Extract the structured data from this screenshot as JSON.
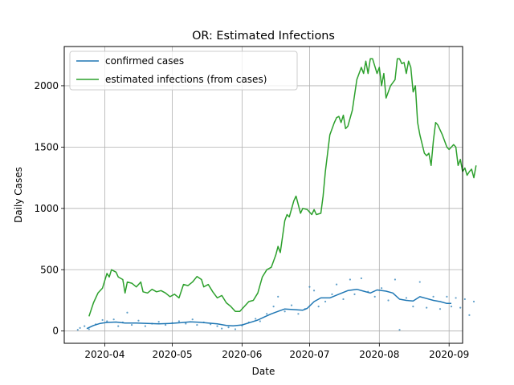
{
  "chart_data": {
    "type": "line",
    "title": "OR: Estimated Infections",
    "xlabel": "Date",
    "ylabel": "Daily Cases",
    "xlim": [
      "2020-03-14",
      "2020-09-07"
    ],
    "ylim": [
      -100,
      2320
    ],
    "x_ticks": [
      "2020-04",
      "2020-05",
      "2020-06",
      "2020-07",
      "2020-08",
      "2020-09"
    ],
    "y_ticks": [
      0,
      500,
      1000,
      1500,
      2000
    ],
    "grid": true,
    "legend": "upper-left",
    "series": [
      {
        "name": "confirmed cases",
        "color": "#1f77b4",
        "points": [
          [
            "2020-03-24",
            20
          ],
          [
            "2020-03-27",
            45
          ],
          [
            "2020-03-30",
            62
          ],
          [
            "2020-04-02",
            70
          ],
          [
            "2020-04-06",
            73
          ],
          [
            "2020-04-10",
            65
          ],
          [
            "2020-04-15",
            65
          ],
          [
            "2020-04-20",
            62
          ],
          [
            "2020-04-25",
            58
          ],
          [
            "2020-04-30",
            62
          ],
          [
            "2020-05-05",
            68
          ],
          [
            "2020-05-09",
            75
          ],
          [
            "2020-05-13",
            72
          ],
          [
            "2020-05-17",
            65
          ],
          [
            "2020-05-21",
            58
          ],
          [
            "2020-05-25",
            45
          ],
          [
            "2020-05-28",
            42
          ],
          [
            "2020-06-01",
            50
          ],
          [
            "2020-06-05",
            72
          ],
          [
            "2020-06-08",
            90
          ],
          [
            "2020-06-11",
            115
          ],
          [
            "2020-06-14",
            140
          ],
          [
            "2020-06-17",
            160
          ],
          [
            "2020-06-20",
            180
          ],
          [
            "2020-06-24",
            175
          ],
          [
            "2020-06-28",
            170
          ],
          [
            "2020-06-30",
            185
          ],
          [
            "2020-07-03",
            240
          ],
          [
            "2020-07-06",
            270
          ],
          [
            "2020-07-10",
            270
          ],
          [
            "2020-07-14",
            300
          ],
          [
            "2020-07-18",
            330
          ],
          [
            "2020-07-22",
            340
          ],
          [
            "2020-07-25",
            325
          ],
          [
            "2020-07-28",
            310
          ],
          [
            "2020-07-31",
            335
          ],
          [
            "2020-08-04",
            325
          ],
          [
            "2020-08-07",
            310
          ],
          [
            "2020-08-10",
            260
          ],
          [
            "2020-08-13",
            250
          ],
          [
            "2020-08-16",
            245
          ],
          [
            "2020-08-19",
            280
          ],
          [
            "2020-08-22",
            265
          ],
          [
            "2020-08-25",
            250
          ],
          [
            "2020-08-28",
            240
          ],
          [
            "2020-08-31",
            225
          ],
          [
            "2020-09-02",
            225
          ]
        ]
      },
      {
        "name": "estimated infections (from cases)",
        "color": "#2ca02c",
        "points": [
          [
            "2020-03-25",
            120
          ],
          [
            "2020-03-27",
            230
          ],
          [
            "2020-03-29",
            310
          ],
          [
            "2020-03-31",
            350
          ],
          [
            "2020-04-02",
            470
          ],
          [
            "2020-04-03",
            440
          ],
          [
            "2020-04-04",
            500
          ],
          [
            "2020-04-06",
            480
          ],
          [
            "2020-04-07",
            440
          ],
          [
            "2020-04-09",
            420
          ],
          [
            "2020-04-10",
            310
          ],
          [
            "2020-04-11",
            400
          ],
          [
            "2020-04-13",
            390
          ],
          [
            "2020-04-15",
            360
          ],
          [
            "2020-04-17",
            400
          ],
          [
            "2020-04-18",
            320
          ],
          [
            "2020-04-20",
            310
          ],
          [
            "2020-04-22",
            340
          ],
          [
            "2020-04-24",
            320
          ],
          [
            "2020-04-26",
            330
          ],
          [
            "2020-04-28",
            310
          ],
          [
            "2020-04-30",
            280
          ],
          [
            "2020-05-02",
            300
          ],
          [
            "2020-05-04",
            270
          ],
          [
            "2020-05-06",
            380
          ],
          [
            "2020-05-08",
            370
          ],
          [
            "2020-05-10",
            400
          ],
          [
            "2020-05-12",
            445
          ],
          [
            "2020-05-14",
            420
          ],
          [
            "2020-05-15",
            360
          ],
          [
            "2020-05-17",
            380
          ],
          [
            "2020-05-19",
            320
          ],
          [
            "2020-05-21",
            270
          ],
          [
            "2020-05-23",
            290
          ],
          [
            "2020-05-25",
            230
          ],
          [
            "2020-05-27",
            200
          ],
          [
            "2020-05-29",
            160
          ],
          [
            "2020-05-31",
            160
          ],
          [
            "2020-06-02",
            200
          ],
          [
            "2020-06-04",
            240
          ],
          [
            "2020-06-06",
            250
          ],
          [
            "2020-06-08",
            310
          ],
          [
            "2020-06-10",
            440
          ],
          [
            "2020-06-12",
            500
          ],
          [
            "2020-06-14",
            520
          ],
          [
            "2020-06-16",
            620
          ],
          [
            "2020-06-17",
            690
          ],
          [
            "2020-06-18",
            640
          ],
          [
            "2020-06-20",
            900
          ],
          [
            "2020-06-21",
            950
          ],
          [
            "2020-06-22",
            930
          ],
          [
            "2020-06-24",
            1060
          ],
          [
            "2020-06-25",
            1100
          ],
          [
            "2020-06-27",
            960
          ],
          [
            "2020-06-28",
            1000
          ],
          [
            "2020-06-30",
            990
          ],
          [
            "2020-07-02",
            950
          ],
          [
            "2020-07-03",
            990
          ],
          [
            "2020-07-04",
            950
          ],
          [
            "2020-07-06",
            960
          ],
          [
            "2020-07-07",
            1100
          ],
          [
            "2020-07-08",
            1300
          ],
          [
            "2020-07-09",
            1450
          ],
          [
            "2020-07-10",
            1600
          ],
          [
            "2020-07-12",
            1700
          ],
          [
            "2020-07-13",
            1740
          ],
          [
            "2020-07-14",
            1750
          ],
          [
            "2020-07-15",
            1700
          ],
          [
            "2020-07-16",
            1760
          ],
          [
            "2020-07-17",
            1650
          ],
          [
            "2020-07-18",
            1670
          ],
          [
            "2020-07-20",
            1800
          ],
          [
            "2020-07-22",
            2050
          ],
          [
            "2020-07-24",
            2150
          ],
          [
            "2020-07-25",
            2100
          ],
          [
            "2020-07-26",
            2200
          ],
          [
            "2020-07-27",
            2100
          ],
          [
            "2020-07-28",
            2220
          ],
          [
            "2020-07-29",
            2220
          ],
          [
            "2020-07-31",
            2100
          ],
          [
            "2020-08-01",
            2150
          ],
          [
            "2020-08-02",
            2000
          ],
          [
            "2020-08-03",
            2100
          ],
          [
            "2020-08-04",
            1900
          ],
          [
            "2020-08-06",
            2000
          ],
          [
            "2020-08-08",
            2050
          ],
          [
            "2020-08-09",
            2220
          ],
          [
            "2020-08-10",
            2220
          ],
          [
            "2020-08-11",
            2180
          ],
          [
            "2020-08-12",
            2190
          ],
          [
            "2020-08-13",
            2100
          ],
          [
            "2020-08-14",
            2200
          ],
          [
            "2020-08-15",
            2150
          ],
          [
            "2020-08-16",
            1950
          ],
          [
            "2020-08-17",
            2000
          ],
          [
            "2020-08-18",
            1700
          ],
          [
            "2020-08-19",
            1600
          ],
          [
            "2020-08-21",
            1450
          ],
          [
            "2020-08-22",
            1430
          ],
          [
            "2020-08-23",
            1450
          ],
          [
            "2020-08-24",
            1350
          ],
          [
            "2020-08-25",
            1550
          ],
          [
            "2020-08-26",
            1700
          ],
          [
            "2020-08-27",
            1680
          ],
          [
            "2020-08-29",
            1600
          ],
          [
            "2020-08-30",
            1550
          ],
          [
            "2020-08-31",
            1500
          ],
          [
            "2020-09-01",
            1480
          ],
          [
            "2020-09-02",
            1500
          ],
          [
            "2020-09-03",
            1520
          ],
          [
            "2020-09-04",
            1500
          ],
          [
            "2020-09-05",
            1350
          ],
          [
            "2020-09-06",
            1400
          ],
          [
            "2020-09-07",
            1300
          ],
          [
            "2020-09-08",
            1330
          ],
          [
            "2020-09-09",
            1270
          ],
          [
            "2020-09-10",
            1300
          ],
          [
            "2020-09-11",
            1320
          ],
          [
            "2020-09-12",
            1250
          ],
          [
            "2020-09-13",
            1350
          ]
        ]
      }
    ],
    "scatter": {
      "color": "#1f77b4",
      "points": [
        [
          "2020-03-20",
          10
        ],
        [
          "2020-03-21",
          25
        ],
        [
          "2020-03-23",
          40
        ],
        [
          "2020-03-25",
          15
        ],
        [
          "2020-03-28",
          55
        ],
        [
          "2020-03-31",
          90
        ],
        [
          "2020-04-02",
          80
        ],
        [
          "2020-04-05",
          95
        ],
        [
          "2020-04-07",
          40
        ],
        [
          "2020-04-09",
          70
        ],
        [
          "2020-04-11",
          150
        ],
        [
          "2020-04-13",
          50
        ],
        [
          "2020-04-16",
          85
        ],
        [
          "2020-04-19",
          40
        ],
        [
          "2020-04-22",
          60
        ],
        [
          "2020-04-25",
          75
        ],
        [
          "2020-04-28",
          50
        ],
        [
          "2020-05-01",
          65
        ],
        [
          "2020-05-04",
          80
        ],
        [
          "2020-05-07",
          60
        ],
        [
          "2020-05-10",
          95
        ],
        [
          "2020-05-12",
          50
        ],
        [
          "2020-05-15",
          70
        ],
        [
          "2020-05-18",
          55
        ],
        [
          "2020-05-21",
          40
        ],
        [
          "2020-05-23",
          20
        ],
        [
          "2020-05-26",
          30
        ],
        [
          "2020-05-29",
          15
        ],
        [
          "2020-06-01",
          45
        ],
        [
          "2020-06-04",
          70
        ],
        [
          "2020-06-07",
          100
        ],
        [
          "2020-06-09",
          80
        ],
        [
          "2020-06-12",
          140
        ],
        [
          "2020-06-15",
          200
        ],
        [
          "2020-06-17",
          280
        ],
        [
          "2020-06-20",
          160
        ],
        [
          "2020-06-23",
          210
        ],
        [
          "2020-06-26",
          140
        ],
        [
          "2020-06-29",
          180
        ],
        [
          "2020-07-01",
          360
        ],
        [
          "2020-07-03",
          330
        ],
        [
          "2020-07-05",
          200
        ],
        [
          "2020-07-08",
          240
        ],
        [
          "2020-07-11",
          300
        ],
        [
          "2020-07-13",
          380
        ],
        [
          "2020-07-16",
          260
        ],
        [
          "2020-07-19",
          420
        ],
        [
          "2020-07-21",
          300
        ],
        [
          "2020-07-24",
          430
        ],
        [
          "2020-07-27",
          320
        ],
        [
          "2020-07-30",
          280
        ],
        [
          "2020-08-02",
          350
        ],
        [
          "2020-08-05",
          250
        ],
        [
          "2020-08-08",
          420
        ],
        [
          "2020-08-10",
          10
        ],
        [
          "2020-08-13",
          270
        ],
        [
          "2020-08-16",
          200
        ],
        [
          "2020-08-19",
          400
        ],
        [
          "2020-08-22",
          190
        ],
        [
          "2020-08-25",
          280
        ],
        [
          "2020-08-28",
          180
        ],
        [
          "2020-08-31",
          280
        ],
        [
          "2020-09-02",
          200
        ],
        [
          "2020-09-04",
          270
        ],
        [
          "2020-09-06",
          190
        ],
        [
          "2020-09-08",
          260
        ],
        [
          "2020-09-10",
          130
        ],
        [
          "2020-09-12",
          240
        ]
      ]
    }
  }
}
